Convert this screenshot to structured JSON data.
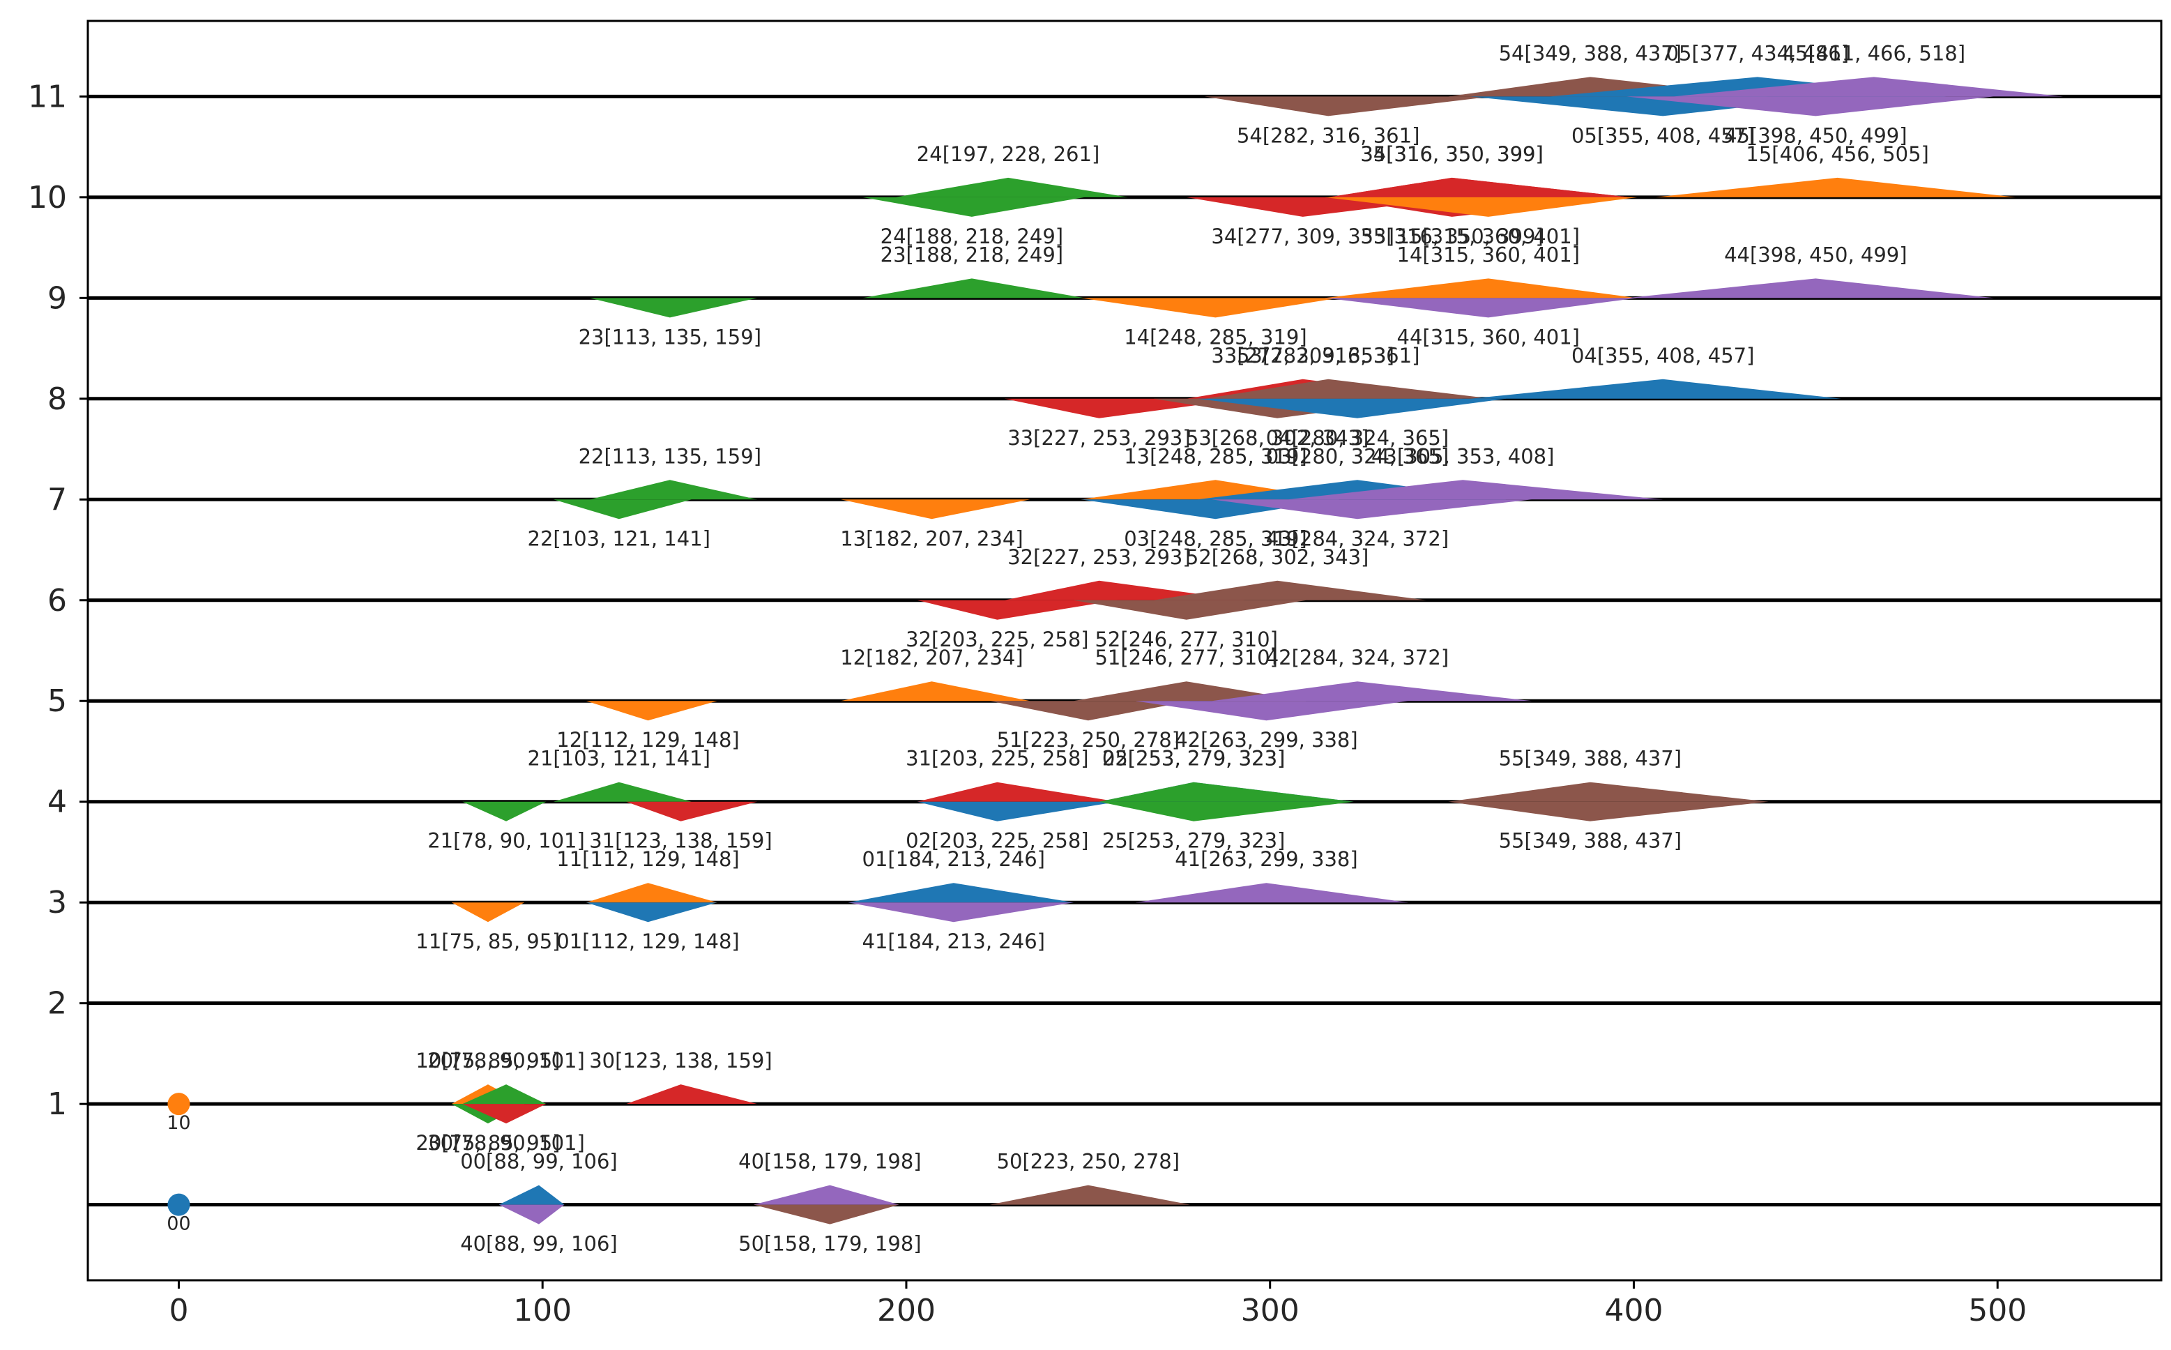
{
  "chart_data": {
    "type": "scatter",
    "title": "",
    "xlabel": "",
    "ylabel": "",
    "xlim": [
      -25,
      545
    ],
    "ylim": [
      -0.75,
      11.75
    ],
    "grid": false,
    "x_ticks": [
      0,
      100,
      200,
      300,
      400,
      500
    ],
    "y_ticks": [
      1,
      2,
      3,
      4,
      5,
      6,
      7,
      8,
      9,
      10,
      11
    ],
    "levels": [
      0,
      1,
      2,
      3,
      4,
      5,
      6,
      7,
      8,
      9,
      10,
      11
    ],
    "colors": {
      "0": "#1f77b4",
      "1": "#ff7f0e",
      "2": "#2ca02c",
      "3": "#d62728",
      "4": "#9467bd",
      "5": "#8c564b"
    },
    "points": [
      {
        "label": "00",
        "series": 0,
        "level": 0,
        "x": 0
      },
      {
        "label": "10",
        "series": 1,
        "level": 1,
        "x": 0
      }
    ],
    "intervals": [
      {
        "label": "00",
        "series": 0,
        "level": 0,
        "side": "above",
        "lo": 88,
        "mid": 99,
        "hi": 106
      },
      {
        "label": "40",
        "series": 4,
        "level": 0,
        "side": "below",
        "lo": 88,
        "mid": 99,
        "hi": 106
      },
      {
        "label": "40",
        "series": 4,
        "level": 0,
        "side": "above",
        "lo": 158,
        "mid": 179,
        "hi": 198
      },
      {
        "label": "50",
        "series": 5,
        "level": 0,
        "side": "below",
        "lo": 158,
        "mid": 179,
        "hi": 198
      },
      {
        "label": "50",
        "series": 5,
        "level": 0,
        "side": "above",
        "lo": 223,
        "mid": 250,
        "hi": 278
      },
      {
        "label": "10",
        "series": 1,
        "level": 1,
        "side": "above",
        "lo": 75,
        "mid": 85,
        "hi": 95
      },
      {
        "label": "20",
        "series": 2,
        "level": 1,
        "side": "above",
        "lo": 78,
        "mid": 90,
        "hi": 101
      },
      {
        "label": "20",
        "series": 2,
        "level": 1,
        "side": "below",
        "lo": 75,
        "mid": 85,
        "hi": 95
      },
      {
        "label": "30",
        "series": 3,
        "level": 1,
        "side": "below",
        "lo": 78,
        "mid": 90,
        "hi": 101
      },
      {
        "label": "30",
        "series": 3,
        "level": 1,
        "side": "above",
        "lo": 123,
        "mid": 138,
        "hi": 159
      },
      {
        "label": "11",
        "series": 1,
        "level": 3,
        "side": "below",
        "lo": 75,
        "mid": 85,
        "hi": 95
      },
      {
        "label": "11",
        "series": 1,
        "level": 3,
        "side": "above",
        "lo": 112,
        "mid": 129,
        "hi": 148
      },
      {
        "label": "01",
        "series": 0,
        "level": 3,
        "side": "below",
        "lo": 112,
        "mid": 129,
        "hi": 148
      },
      {
        "label": "01",
        "series": 0,
        "level": 3,
        "side": "above",
        "lo": 184,
        "mid": 213,
        "hi": 246
      },
      {
        "label": "41",
        "series": 4,
        "level": 3,
        "side": "below",
        "lo": 184,
        "mid": 213,
        "hi": 246
      },
      {
        "label": "41",
        "series": 4,
        "level": 3,
        "side": "above",
        "lo": 263,
        "mid": 299,
        "hi": 338
      },
      {
        "label": "21",
        "series": 2,
        "level": 4,
        "side": "below",
        "lo": 78,
        "mid": 90,
        "hi": 101
      },
      {
        "label": "21",
        "series": 2,
        "level": 4,
        "side": "above",
        "lo": 103,
        "mid": 121,
        "hi": 141
      },
      {
        "label": "31",
        "series": 3,
        "level": 4,
        "side": "below",
        "lo": 123,
        "mid": 138,
        "hi": 159
      },
      {
        "label": "31",
        "series": 3,
        "level": 4,
        "side": "above",
        "lo": 203,
        "mid": 225,
        "hi": 258
      },
      {
        "label": "02",
        "series": 0,
        "level": 4,
        "side": "below",
        "lo": 203,
        "mid": 225,
        "hi": 258
      },
      {
        "label": "02",
        "series": 0,
        "level": 4,
        "side": "above",
        "lo": 253,
        "mid": 279,
        "hi": 323
      },
      {
        "label": "25",
        "series": 2,
        "level": 4,
        "side": "below",
        "lo": 253,
        "mid": 279,
        "hi": 323
      },
      {
        "label": "25",
        "series": 2,
        "level": 4,
        "side": "above",
        "lo": 253,
        "mid": 279,
        "hi": 323
      },
      {
        "label": "55",
        "series": 5,
        "level": 4,
        "side": "below",
        "lo": 349,
        "mid": 388,
        "hi": 437
      },
      {
        "label": "55",
        "series": 5,
        "level": 4,
        "side": "above",
        "lo": 349,
        "mid": 388,
        "hi": 437
      },
      {
        "label": "12",
        "series": 1,
        "level": 5,
        "side": "below",
        "lo": 112,
        "mid": 129,
        "hi": 148
      },
      {
        "label": "12",
        "series": 1,
        "level": 5,
        "side": "above",
        "lo": 182,
        "mid": 207,
        "hi": 234
      },
      {
        "label": "51",
        "series": 5,
        "level": 5,
        "side": "below",
        "lo": 223,
        "mid": 250,
        "hi": 278
      },
      {
        "label": "51",
        "series": 5,
        "level": 5,
        "side": "above",
        "lo": 246,
        "mid": 277,
        "hi": 310
      },
      {
        "label": "42",
        "series": 4,
        "level": 5,
        "side": "below",
        "lo": 263,
        "mid": 299,
        "hi": 338
      },
      {
        "label": "42",
        "series": 4,
        "level": 5,
        "side": "above",
        "lo": 284,
        "mid": 324,
        "hi": 372
      },
      {
        "label": "32",
        "series": 3,
        "level": 6,
        "side": "below",
        "lo": 203,
        "mid": 225,
        "hi": 258
      },
      {
        "label": "32",
        "series": 3,
        "level": 6,
        "side": "above",
        "lo": 227,
        "mid": 253,
        "hi": 293
      },
      {
        "label": "52",
        "series": 5,
        "level": 6,
        "side": "below",
        "lo": 246,
        "mid": 277,
        "hi": 310
      },
      {
        "label": "52",
        "series": 5,
        "level": 6,
        "side": "above",
        "lo": 268,
        "mid": 302,
        "hi": 343
      },
      {
        "label": "22",
        "series": 2,
        "level": 7,
        "side": "below",
        "lo": 103,
        "mid": 121,
        "hi": 141
      },
      {
        "label": "22",
        "series": 2,
        "level": 7,
        "side": "above",
        "lo": 113,
        "mid": 135,
        "hi": 159
      },
      {
        "label": "13",
        "series": 1,
        "level": 7,
        "side": "below",
        "lo": 182,
        "mid": 207,
        "hi": 234
      },
      {
        "label": "13",
        "series": 1,
        "level": 7,
        "side": "above",
        "lo": 248,
        "mid": 285,
        "hi": 319
      },
      {
        "label": "03",
        "series": 0,
        "level": 7,
        "side": "below",
        "lo": 248,
        "mid": 285,
        "hi": 319
      },
      {
        "label": "03",
        "series": 0,
        "level": 7,
        "side": "above",
        "lo": 280,
        "mid": 324,
        "hi": 365
      },
      {
        "label": "43",
        "series": 4,
        "level": 7,
        "side": "below",
        "lo": 284,
        "mid": 324,
        "hi": 372
      },
      {
        "label": "43",
        "series": 4,
        "level": 7,
        "side": "above",
        "lo": 305,
        "mid": 353,
        "hi": 408
      },
      {
        "label": "33",
        "series": 3,
        "level": 8,
        "side": "below",
        "lo": 227,
        "mid": 253,
        "hi": 293
      },
      {
        "label": "33",
        "series": 3,
        "level": 8,
        "side": "above",
        "lo": 277,
        "mid": 309,
        "hi": 353
      },
      {
        "label": "53",
        "series": 5,
        "level": 8,
        "side": "below",
        "lo": 268,
        "mid": 302,
        "hi": 343
      },
      {
        "label": "53",
        "series": 5,
        "level": 8,
        "side": "above",
        "lo": 282,
        "mid": 316,
        "hi": 361
      },
      {
        "label": "04",
        "series": 0,
        "level": 8,
        "side": "below",
        "lo": 280,
        "mid": 324,
        "hi": 365
      },
      {
        "label": "04",
        "series": 0,
        "level": 8,
        "side": "above",
        "lo": 355,
        "mid": 408,
        "hi": 457
      },
      {
        "label": "23",
        "series": 2,
        "level": 9,
        "side": "below",
        "lo": 113,
        "mid": 135,
        "hi": 159
      },
      {
        "label": "23",
        "series": 2,
        "level": 9,
        "side": "above",
        "lo": 188,
        "mid": 218,
        "hi": 249
      },
      {
        "label": "14",
        "series": 1,
        "level": 9,
        "side": "below",
        "lo": 248,
        "mid": 285,
        "hi": 319
      },
      {
        "label": "14",
        "series": 1,
        "level": 9,
        "side": "above",
        "lo": 315,
        "mid": 360,
        "hi": 401
      },
      {
        "label": "44",
        "series": 4,
        "level": 9,
        "side": "below",
        "lo": 315,
        "mid": 360,
        "hi": 401
      },
      {
        "label": "44",
        "series": 4,
        "level": 9,
        "side": "above",
        "lo": 398,
        "mid": 450,
        "hi": 499
      },
      {
        "label": "24",
        "series": 2,
        "level": 10,
        "side": "below",
        "lo": 188,
        "mid": 218,
        "hi": 249
      },
      {
        "label": "24",
        "series": 2,
        "level": 10,
        "side": "above",
        "lo": 197,
        "mid": 228,
        "hi": 261
      },
      {
        "label": "34",
        "series": 3,
        "level": 10,
        "side": "below",
        "lo": 277,
        "mid": 309,
        "hi": 353
      },
      {
        "label": "34",
        "series": 3,
        "level": 10,
        "side": "above",
        "lo": 316,
        "mid": 350,
        "hi": 399
      },
      {
        "label": "35",
        "series": 3,
        "level": 10,
        "side": "above",
        "lo": 316,
        "mid": 350,
        "hi": 399
      },
      {
        "label": "35",
        "series": 3,
        "level": 10,
        "side": "below",
        "lo": 316,
        "mid": 350,
        "hi": 399
      },
      {
        "label": "15",
        "series": 1,
        "level": 10,
        "side": "below",
        "lo": 315,
        "mid": 360,
        "hi": 401
      },
      {
        "label": "15",
        "series": 1,
        "level": 10,
        "side": "above",
        "lo": 406,
        "mid": 456,
        "hi": 505
      },
      {
        "label": "54",
        "series": 5,
        "level": 11,
        "side": "below",
        "lo": 282,
        "mid": 316,
        "hi": 361
      },
      {
        "label": "54",
        "series": 5,
        "level": 11,
        "side": "above",
        "lo": 349,
        "mid": 388,
        "hi": 437
      },
      {
        "label": "05",
        "series": 0,
        "level": 11,
        "side": "below",
        "lo": 355,
        "mid": 408,
        "hi": 457
      },
      {
        "label": "05",
        "series": 0,
        "level": 11,
        "side": "above",
        "lo": 377,
        "mid": 434,
        "hi": 486
      },
      {
        "label": "45",
        "series": 4,
        "level": 11,
        "side": "below",
        "lo": 398,
        "mid": 450,
        "hi": 499
      },
      {
        "label": "45",
        "series": 4,
        "level": 11,
        "side": "above",
        "lo": 411,
        "mid": 466,
        "hi": 518
      }
    ]
  }
}
